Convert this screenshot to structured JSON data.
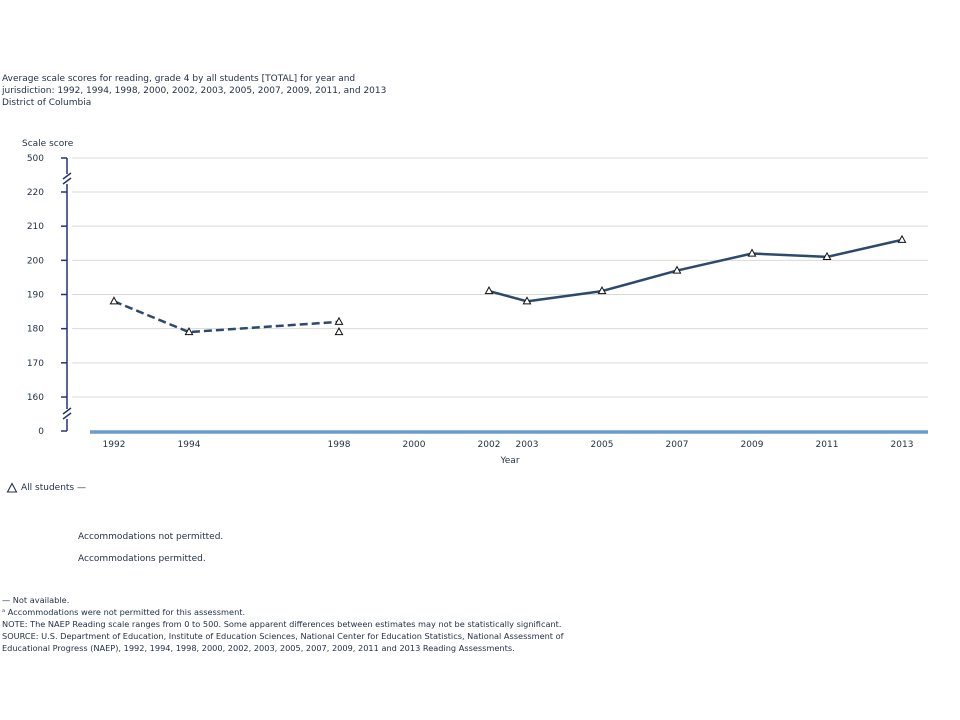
{
  "title_lines": [
    "Average scale scores for reading, grade 4 by all students [TOTAL] for year and",
    "jurisdiction: 1992, 1994, 1998, 2000, 2002, 2003, 2005, 2007, 2009, 2011, and 2013",
    "District of Columbia"
  ],
  "chart_data": {
    "type": "line",
    "title": "Average scale scores for reading, grade 4 by all students [TOTAL] for year and jurisdiction: 1992, 1994, 1998, 2000, 2002, 2003, 2005, 2007, 2009, 2011, and 2013",
    "subtitle": "District of Columbia",
    "ylabel": "Scale score",
    "xlabel": "Year",
    "y_ticks": [
      "500",
      "220",
      "210",
      "200",
      "190",
      "180",
      "170",
      "160",
      "0"
    ],
    "y_break_range": [
      160,
      220
    ],
    "x_categories": [
      "1992",
      "1994",
      "1998",
      "2000",
      "2002",
      "2003",
      "2005",
      "2007",
      "2009",
      "2011",
      "2013"
    ],
    "series": [
      {
        "name": "All students — Accommodations not permitted",
        "style": "dashed",
        "x": [
          1992,
          1994,
          1998
        ],
        "values": [
          188,
          179,
          182
        ]
      },
      {
        "name": "All students — Accommodations permitted (1998)",
        "style": "marker-only",
        "x": [
          1998
        ],
        "values": [
          179
        ]
      },
      {
        "name": "All students — Accommodations permitted",
        "style": "solid",
        "x": [
          2002,
          2003,
          2005,
          2007,
          2009,
          2011,
          2013
        ],
        "values": [
          191,
          188,
          191,
          197,
          202,
          201,
          206
        ]
      }
    ],
    "colors": {
      "line": "#2b4a6e",
      "axis": "#22337a",
      "baseline": "#6b9bd1",
      "grid": "#d9d9d9"
    }
  },
  "legend": {
    "marker_label": "All students —",
    "dashed_label": "Accommodations not permitted.",
    "solid_label": "Accommodations permitted."
  },
  "notes": [
    "— Not available.",
    "ᵃ Accommodations were not permitted for this assessment.",
    "NOTE:  The NAEP Reading scale ranges from 0 to 500. Some apparent differences between estimates may not be statistically significant.",
    "SOURCE: U.S. Department of Education, Institute of Education Sciences, National Center for Education Statistics, National Assessment of",
    "Educational Progress (NAEP), 1992, 1994, 1998, 2000, 2002, 2003, 2005, 2007, 2009, 2011 and 2013 Reading Assessments."
  ]
}
